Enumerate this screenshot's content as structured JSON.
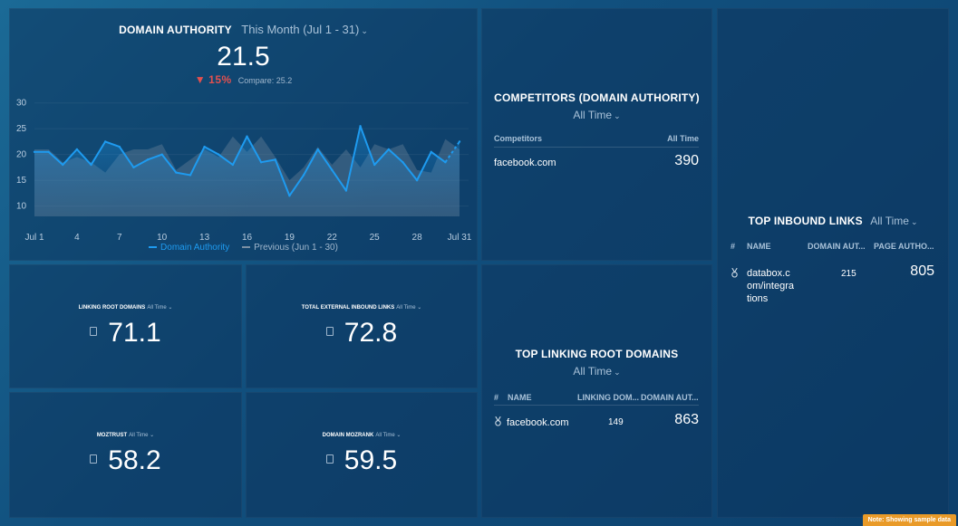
{
  "domain_authority": {
    "title": "DOMAIN AUTHORITY",
    "period": "This Month (Jul 1 - 31)",
    "value": "21.5",
    "change": "15%",
    "compare": "Compare: 25.2",
    "legend_current": "Domain Authority",
    "legend_previous": "Previous (Jun 1 - 30)"
  },
  "chart_data": {
    "type": "line",
    "x": [
      "Jul 1",
      "2",
      "3",
      "4",
      "5",
      "6",
      "7",
      "8",
      "9",
      "10",
      "11",
      "12",
      "13",
      "14",
      "15",
      "16",
      "17",
      "18",
      "19",
      "20",
      "21",
      "22",
      "23",
      "24",
      "25",
      "26",
      "27",
      "28",
      "29",
      "30",
      "Jul 31"
    ],
    "x_tick_labels": [
      "Jul 1",
      "4",
      "7",
      "10",
      "13",
      "16",
      "19",
      "22",
      "25",
      "28",
      "Jul 31"
    ],
    "y_tick_labels": [
      "30",
      "25",
      "20",
      "15",
      "10"
    ],
    "ylim": [
      8,
      31
    ],
    "series": [
      {
        "name": "Domain Authority",
        "color": "#1e9bf0",
        "values": [
          20.5,
          20.5,
          18,
          21,
          18,
          22.5,
          21.5,
          17.5,
          19,
          20,
          16.5,
          16,
          21.5,
          20,
          18,
          23.5,
          18.5,
          19,
          12,
          16,
          21,
          17,
          13,
          25.5,
          18,
          21,
          18.5,
          15,
          20.5,
          18.5,
          22.5
        ]
      },
      {
        "name": "Previous (Jun 1 - 30)",
        "color": "#5c7186",
        "values": [
          21,
          21,
          18.5,
          19.5,
          18.5,
          16.5,
          20,
          21,
          21,
          22,
          17,
          19,
          21,
          19.5,
          23.5,
          20.5,
          23.5,
          19.5,
          15,
          17.5,
          21.5,
          18,
          21,
          17.5,
          22,
          21,
          22,
          17,
          16.5,
          23,
          21
        ]
      }
    ]
  },
  "metrics": [
    {
      "label": "LINKING ROOT DOMAINS",
      "period": "All Time",
      "value": "71.1"
    },
    {
      "label": "TOTAL EXTERNAL INBOUND LINKS",
      "period": "All Time",
      "value": "72.8"
    },
    {
      "label": "MOZTRUST",
      "period": "All Time",
      "value": "58.2"
    },
    {
      "label": "DOMAIN MOZRANK",
      "period": "All Time",
      "value": "59.5"
    }
  ],
  "competitors": {
    "title": "COMPETITORS (DOMAIN AUTHORITY)",
    "period": "All Time",
    "col_name": "Competitors",
    "col_value": "All Time",
    "rows": [
      {
        "name": "facebook.com",
        "value": "390"
      }
    ]
  },
  "top_linking_root_domains": {
    "title": "TOP LINKING ROOT DOMAINS",
    "period": "All Time",
    "cols": [
      "#",
      "NAME",
      "LINKING DOM...",
      "DOMAIN AUT..."
    ],
    "rows": [
      {
        "name": "facebook.com",
        "c1": "149",
        "c2": "863"
      }
    ]
  },
  "top_inbound_links": {
    "title": "TOP INBOUND LINKS",
    "period": "All Time",
    "cols": [
      "#",
      "NAME",
      "DOMAIN AUT...",
      "PAGE AUTHO..."
    ],
    "rows": [
      {
        "name_l1": "databox.c",
        "name_l2": "om/integra",
        "name_l3": "tions",
        "c1": "215",
        "c2": "805"
      }
    ]
  },
  "note": "Note: Showing sample data",
  "colors": {
    "primary_line": "#1e9bf0",
    "previous_line": "#5c7186",
    "negative": "#e2504f",
    "note_bg": "#e99a28"
  }
}
